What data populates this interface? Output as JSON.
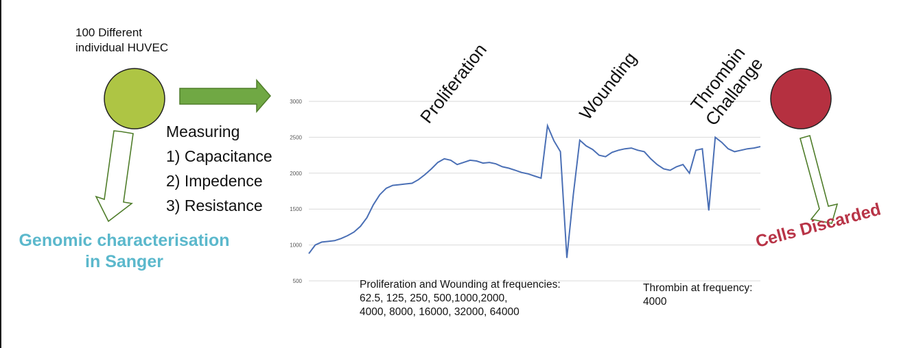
{
  "source": {
    "label_line1": "100 Different",
    "label_line2": "individual HUVEC",
    "circle_color": "#aec544"
  },
  "sink": {
    "circle_color": "#b53040",
    "label": "Cells Discarded",
    "label_color": "#b83447"
  },
  "measuring": {
    "title": "Measuring",
    "items": [
      "1) Capacitance",
      "2) Impedence",
      "3) Resistance"
    ]
  },
  "genomic": {
    "line1": "Genomic characterisation",
    "line2": "in Sanger",
    "color": "#5bb8cc"
  },
  "phases": {
    "proliferation": "Proliferation",
    "wounding": "Wounding",
    "thrombin_line1": "Thrombin",
    "thrombin_line2": "Challange"
  },
  "frequencies": {
    "prolif_line1": "Proliferation and Wounding at frequencies:",
    "prolif_line2": "62.5, 125, 250, 500,1000,2000,",
    "prolif_line3": "4000, 8000, 16000, 32000, 64000",
    "thrombin_line1": "Thrombin at frequency:",
    "thrombin_line2": "4000"
  },
  "colors": {
    "arrow_fill": "#70a844",
    "arrow_stroke": "#4f7d2a",
    "line": "#4a6fb5",
    "grid": "#d9d9d9",
    "tick_text": "#555555"
  },
  "chart_data": {
    "type": "line",
    "ylim": [
      500,
      3000
    ],
    "yticks": [
      "3000",
      "2500",
      "2000",
      "1500",
      "1000",
      "500"
    ],
    "grid": true,
    "series": [
      {
        "values": [
          880,
          1000,
          1040,
          1050,
          1060,
          1090,
          1130,
          1180,
          1260,
          1380,
          1560,
          1700,
          1790,
          1830,
          1840,
          1850,
          1860,
          1910,
          1980,
          2060,
          2150,
          2200,
          2180,
          2120,
          2150,
          2180,
          2170,
          2140,
          2150,
          2130,
          2090,
          2070,
          2040,
          2010,
          1990,
          1960,
          1930,
          2660,
          2450,
          2300,
          820,
          1700,
          2460,
          2380,
          2330,
          2250,
          2230,
          2290,
          2320,
          2340,
          2350,
          2320,
          2300,
          2200,
          2120,
          2060,
          2040,
          2090,
          2120,
          2000,
          2320,
          2340,
          1480,
          2500,
          2430,
          2340,
          2300,
          2320,
          2340,
          2350,
          2370
        ]
      }
    ]
  }
}
